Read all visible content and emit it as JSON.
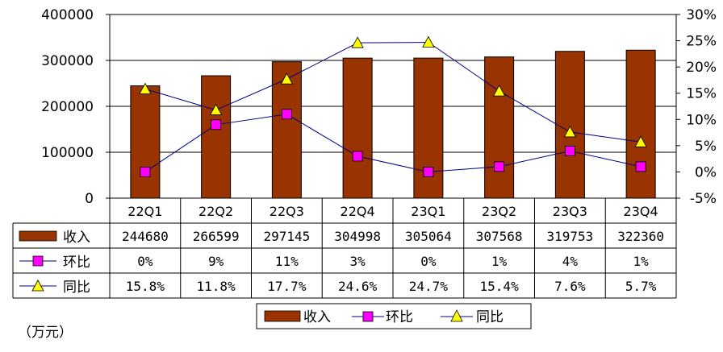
{
  "chart_data": {
    "type": "bar+line",
    "unit_note": "（万元）",
    "categories": [
      "22Q1",
      "22Q2",
      "22Q3",
      "22Q4",
      "23Q1",
      "23Q2",
      "23Q3",
      "23Q4"
    ],
    "y_left": {
      "min": 0,
      "max": 400000,
      "ticks": [
        "0",
        "100000",
        "200000",
        "300000",
        "400000"
      ]
    },
    "y_right": {
      "min": -5,
      "max": 30,
      "ticks": [
        "-5%",
        "0%",
        "5%",
        "10%",
        "15%",
        "20%",
        "25%",
        "30%"
      ]
    },
    "series": [
      {
        "name": "收入",
        "kind": "bar",
        "axis": "left",
        "values": [
          244680,
          266599,
          297145,
          304998,
          305064,
          307568,
          319753,
          322360
        ],
        "labels": [
          "244680",
          "266599",
          "297145",
          "304998",
          "305064",
          "307568",
          "319753",
          "322360"
        ]
      },
      {
        "name": "环比",
        "kind": "line-square",
        "axis": "right",
        "values": [
          0,
          9,
          11,
          3,
          0,
          1,
          4,
          1
        ],
        "labels": [
          "0%",
          "9%",
          "11%",
          "3%",
          "0%",
          "1%",
          "4%",
          "1%"
        ]
      },
      {
        "name": "同比",
        "kind": "line-triangle",
        "axis": "right",
        "values": [
          15.8,
          11.8,
          17.7,
          24.6,
          24.7,
          15.4,
          7.6,
          5.7
        ],
        "labels": [
          "15.8%",
          "11.8%",
          "17.7%",
          "24.6%",
          "24.7%",
          "15.4%",
          "7.6%",
          "5.7%"
        ]
      }
    ],
    "legend": {
      "position": "bottom-center",
      "entries": [
        "收入",
        "环比",
        "同比"
      ]
    },
    "grid": true
  },
  "colors": {
    "bar": "#993300",
    "square": "#ff00ff",
    "triangle": "#ffff00",
    "line": "#000080"
  }
}
